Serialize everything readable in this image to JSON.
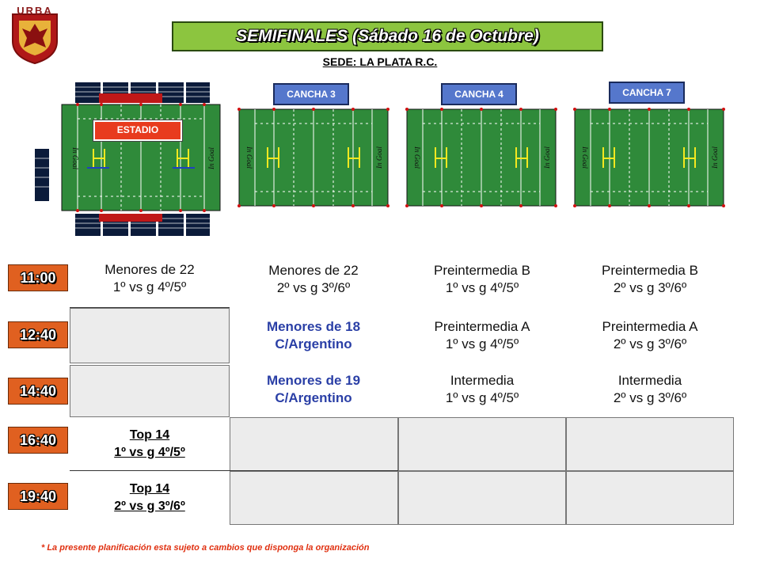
{
  "logo": {
    "text": "URBA"
  },
  "title": "SEMIFINALES (Sábado 16 de Octubre)",
  "subtitle": "SEDE: LA PLATA R.C.",
  "fields": {
    "stadium": {
      "label": "ESTADIO",
      "ingoal_left": "In Goal",
      "ingoal_right": "In Goal"
    },
    "courts": [
      {
        "label": "CANCHA 3",
        "ingoal_left": "In Goal",
        "ingoal_right": "In Goal"
      },
      {
        "label": "CANCHA 4",
        "ingoal_left": "In Goal",
        "ingoal_right": "In Goal"
      },
      {
        "label": "CANCHA 7",
        "ingoal_left": "In Goal",
        "ingoal_right": "In Goal"
      }
    ]
  },
  "colors": {
    "title_bg": "#8cc53f",
    "time_bg": "#e06020",
    "court_label_bg": "#5577cc",
    "stadium_label_bg": "#e83b1e",
    "field_green": "#2f8a3a",
    "footer": "#e03010",
    "blue_text": "#2a3fa6"
  },
  "times": [
    "11:00",
    "12:40",
    "14:40",
    "16:40",
    "19:40"
  ],
  "schedule": {
    "r0": {
      "c0": {
        "l1": "Menores de 22",
        "l2": "1º vs g 4º/5º"
      },
      "c1": {
        "l1": "Menores de 22",
        "l2": "2º vs g 3º/6º"
      },
      "c2": {
        "l1": "Preintermedia B",
        "l2": "1º vs g 4º/5º"
      },
      "c3": {
        "l1": "Preintermedia B",
        "l2": "2º vs g 3º/6º"
      }
    },
    "r1": {
      "c1": {
        "l1": "Menores de 18",
        "l2": "C/Argentino"
      },
      "c2": {
        "l1": "Preintermedia A",
        "l2": "1º vs g 4º/5º"
      },
      "c3": {
        "l1": "Preintermedia A",
        "l2": "2º vs g 3º/6º"
      }
    },
    "r2": {
      "c1": {
        "l1": "Menores de 19",
        "l2": "C/Argentino"
      },
      "c2": {
        "l1": "Intermedia",
        "l2": "1º vs g 4º/5º"
      },
      "c3": {
        "l1": "Intermedia",
        "l2": "2º vs g 3º/6º"
      }
    },
    "r3": {
      "c0": {
        "l1": "Top 14",
        "l2": "1º vs g 4º/5º"
      }
    },
    "r4": {
      "c0": {
        "l1": "Top 14",
        "l2": "2º vs g 3º/6º"
      }
    }
  },
  "footer": "* La presente planificación esta sujeto a cambios que disponga la organización"
}
